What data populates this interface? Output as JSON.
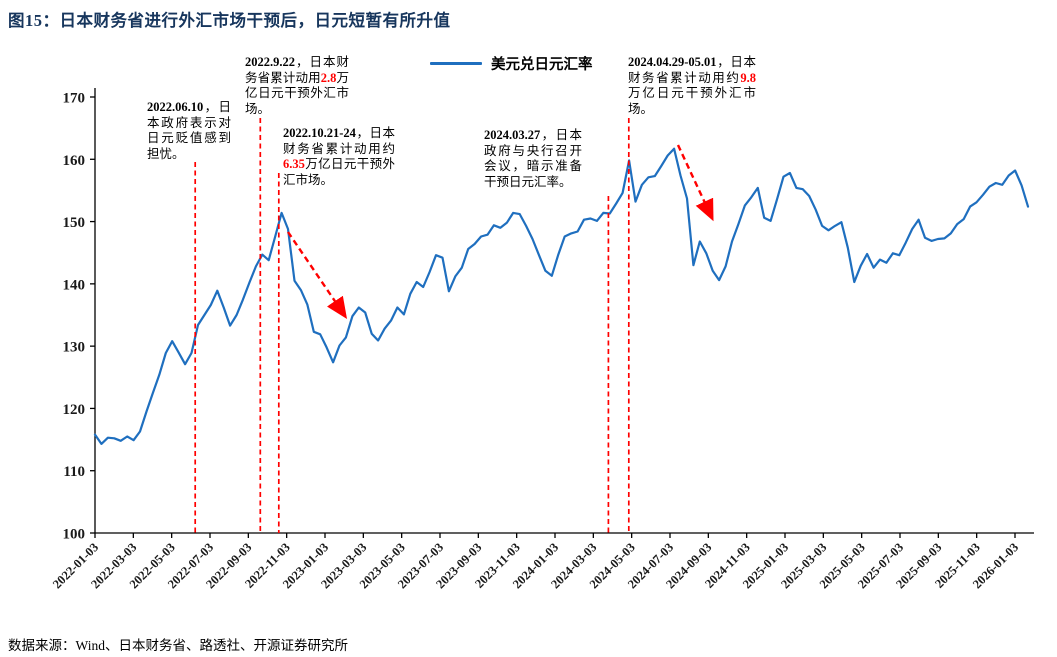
{
  "page": {
    "title": "图15：日本财务省进行外汇市场干预后，日元短暂有所升值",
    "source": "数据来源：Wind、日本财务省、路透社、开源证券研究所"
  },
  "legend": {
    "label": "美元兑日元汇率"
  },
  "colors": {
    "line": "#1f6fbf",
    "event": "#ff0000",
    "title": "#17365d",
    "annotation_highlight": "#ff0000",
    "axis": "#000000"
  },
  "chart_data": {
    "type": "line",
    "title": "美元兑日元汇率",
    "xlabel": "",
    "ylabel": "",
    "ylim": [
      100,
      170
    ],
    "y_ticks": [
      100,
      110,
      120,
      130,
      140,
      150,
      160,
      170
    ],
    "grid": false,
    "legend_position": "top-center",
    "x_tick_labels": [
      "2022-01-03",
      "2022-03-03",
      "2022-05-03",
      "2022-07-03",
      "2022-09-03",
      "2022-11-03",
      "2023-01-03",
      "2023-03-03",
      "2023-05-03",
      "2023-07-03",
      "2023-09-03",
      "2023-11-03",
      "2024-01-03",
      "2024-03-03",
      "2024-05-03",
      "2024-07-03",
      "2024-09-03",
      "2024-11-03",
      "2025-01-03",
      "2025-03-03",
      "2025-05-03",
      "2025-07-03",
      "2025-09-03",
      "2025-11-03",
      "2026-01-03"
    ],
    "x_start": "2022-01-03",
    "x_end": "2026-01-20",
    "series": [
      {
        "name": "美元兑日元汇率",
        "points_per_month": 3,
        "values": [
          115.8,
          114.3,
          115.3,
          115.2,
          114.8,
          115.5,
          114.9,
          116.3,
          119.5,
          122.5,
          125.4,
          128.9,
          130.8,
          129.0,
          127.1,
          128.9,
          133.4,
          135.0,
          136.6,
          138.9,
          136.2,
          133.3,
          135.0,
          137.5,
          140.2,
          142.8,
          144.7,
          143.8,
          147.6,
          151.4,
          148.8,
          140.5,
          139.0,
          136.7,
          132.3,
          131.9,
          129.8,
          127.4,
          130.1,
          131.4,
          134.8,
          136.2,
          135.4,
          132.0,
          130.9,
          132.8,
          134.1,
          136.2,
          135.1,
          138.4,
          140.3,
          139.5,
          141.9,
          144.6,
          144.2,
          138.8,
          141.2,
          142.6,
          145.6,
          146.4,
          147.6,
          147.9,
          149.4,
          149.0,
          149.8,
          151.4,
          151.2,
          149.3,
          147.2,
          144.6,
          142.1,
          141.3,
          144.7,
          147.6,
          148.1,
          148.4,
          150.3,
          150.5,
          150.1,
          151.4,
          151.3,
          152.9,
          154.6,
          159.8,
          153.2,
          155.9,
          157.1,
          157.3,
          158.9,
          160.6,
          161.7,
          157.4,
          153.7,
          143.0,
          146.8,
          144.9,
          142.1,
          140.6,
          142.8,
          146.8,
          149.6,
          152.6,
          153.9,
          155.4,
          150.6,
          150.1,
          153.6,
          157.2,
          157.8,
          155.4,
          155.2,
          154.1,
          151.9,
          149.3,
          148.6,
          149.3,
          149.9,
          145.8,
          140.3,
          142.9,
          144.8,
          142.6,
          143.9,
          143.4,
          144.9,
          144.6,
          146.6,
          148.8,
          150.3,
          147.4,
          146.9,
          147.2,
          147.3,
          148.1,
          149.6,
          150.4,
          152.4,
          153.1,
          154.3,
          155.6,
          156.2,
          155.9,
          157.4,
          158.2,
          155.8,
          152.4
        ]
      }
    ],
    "events": [
      {
        "date": "2022-06-10"
      },
      {
        "date": "2022-09-22"
      },
      {
        "date": "2022-10-21"
      },
      {
        "date": "2024-03-27"
      },
      {
        "date": "2024-04-29"
      }
    ]
  },
  "annotations": [
    {
      "segments": [
        {
          "text": "2022.06.10",
          "style": "bold"
        },
        {
          "text": "，日本政府表示对日元贬值感到担忧。",
          "style": "normal"
        }
      ]
    },
    {
      "segments": [
        {
          "text": "2022.9.22",
          "style": "bold"
        },
        {
          "text": "，日本财务省累计动用",
          "style": "normal"
        },
        {
          "text": "2.8",
          "style": "red"
        },
        {
          "text": "万亿日元干预外汇市场。",
          "style": "normal"
        }
      ]
    },
    {
      "segments": [
        {
          "text": "2022.10.21-24",
          "style": "bold"
        },
        {
          "text": "，日本财务省累计动用约",
          "style": "normal"
        },
        {
          "text": "6.35",
          "style": "red"
        },
        {
          "text": "万亿日元干预外汇市场。",
          "style": "normal"
        }
      ]
    },
    {
      "segments": [
        {
          "text": "2024.03.27",
          "style": "bold"
        },
        {
          "text": "，日本政府与央行召开会议，暗示准备干预日元汇率。",
          "style": "normal"
        }
      ]
    },
    {
      "segments": [
        {
          "text": "2024.04.29-05.01",
          "style": "bold"
        },
        {
          "text": "，日本财务省累计动用约",
          "style": "normal"
        },
        {
          "text": "9.8",
          "style": "red"
        },
        {
          "text": "万亿日元干预外汇市场。",
          "style": "normal"
        }
      ]
    }
  ]
}
